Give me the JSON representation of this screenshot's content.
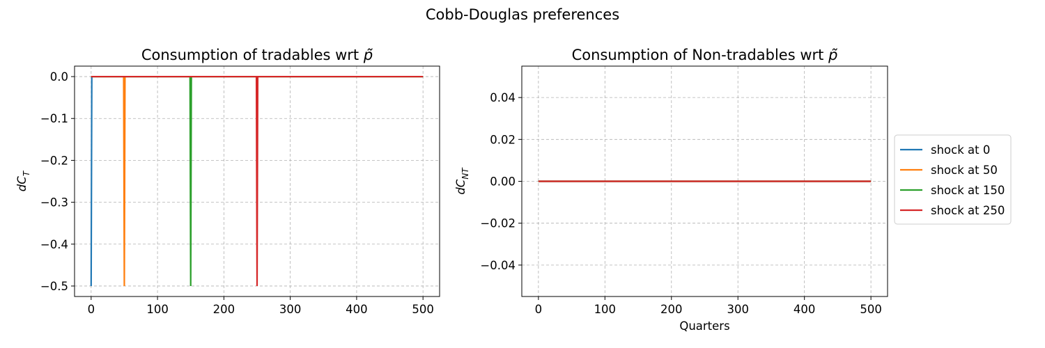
{
  "figure": {
    "suptitle": "Cobb-Douglas preferences"
  },
  "chart_data": [
    {
      "type": "line",
      "title": "Consumption of tradables wrt p̃",
      "xlabel": "",
      "ylabel": "dC_T",
      "xlim": [
        -25,
        525
      ],
      "ylim": [
        -0.525,
        0.025
      ],
      "xticks": [
        0,
        100,
        200,
        300,
        400,
        500
      ],
      "yticks": [
        0.0,
        -0.1,
        -0.2,
        -0.3,
        -0.4,
        -0.5
      ],
      "xtick_labels": [
        "0",
        "100",
        "200",
        "300",
        "400",
        "500"
      ],
      "ytick_labels": [
        "0.0",
        "−0.1",
        "−0.2",
        "−0.3",
        "−0.4",
        "−0.5"
      ],
      "grid": true,
      "series": [
        {
          "name": "shock at 0",
          "color": "#1f77b4",
          "x": [
            0,
            1,
            500
          ],
          "y": [
            -0.5,
            0.0,
            0.0
          ]
        },
        {
          "name": "shock at 50",
          "color": "#ff7f0e",
          "x": [
            0,
            49,
            50,
            51,
            500
          ],
          "y": [
            0.0,
            0.0,
            -0.5,
            0.0,
            0.0
          ]
        },
        {
          "name": "shock at 150",
          "color": "#2ca02c",
          "x": [
            0,
            149,
            150,
            151,
            500
          ],
          "y": [
            0.0,
            0.0,
            -0.5,
            0.0,
            0.0
          ]
        },
        {
          "name": "shock at 250",
          "color": "#d62728",
          "x": [
            0,
            249,
            250,
            251,
            500
          ],
          "y": [
            0.0,
            0.0,
            -0.5,
            0.0,
            0.0
          ]
        }
      ]
    },
    {
      "type": "line",
      "title": "Consumption of Non-tradables wrt p̃",
      "xlabel": "Quarters",
      "ylabel": "dC_NT",
      "xlim": [
        -25,
        525
      ],
      "ylim": [
        -0.055,
        0.055
      ],
      "xticks": [
        0,
        100,
        200,
        300,
        400,
        500
      ],
      "yticks": [
        0.04,
        0.02,
        0.0,
        -0.02,
        -0.04
      ],
      "xtick_labels": [
        "0",
        "100",
        "200",
        "300",
        "400",
        "500"
      ],
      "ytick_labels": [
        "0.04",
        "0.02",
        "0.00",
        "−0.02",
        "−0.04"
      ],
      "grid": true,
      "legend": "outside-right",
      "series": [
        {
          "name": "shock at 0",
          "color": "#1f77b4",
          "x": [
            0,
            500
          ],
          "y": [
            0.0,
            0.0
          ]
        },
        {
          "name": "shock at 50",
          "color": "#ff7f0e",
          "x": [
            0,
            500
          ],
          "y": [
            0.0,
            0.0
          ]
        },
        {
          "name": "shock at 150",
          "color": "#2ca02c",
          "x": [
            0,
            500
          ],
          "y": [
            0.0,
            0.0
          ]
        },
        {
          "name": "shock at 250",
          "color": "#d62728",
          "x": [
            0,
            500
          ],
          "y": [
            0.0,
            0.0
          ]
        }
      ]
    }
  ]
}
